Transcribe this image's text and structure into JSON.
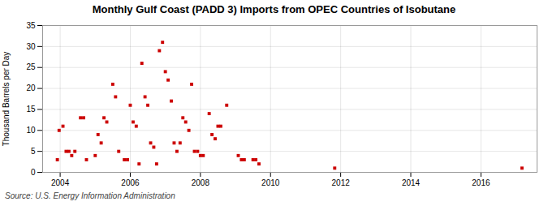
{
  "chart_data": {
    "type": "scatter",
    "title": "Monthly Gulf Coast (PADD 3) Imports from OPEC Countries of Isobutane",
    "ylabel": "Thousand Barrels per Day",
    "source": "Source: U.S. Energy Information Administration",
    "color": "#cc0000",
    "marker": "square",
    "grid": true,
    "xlim": [
      2003.5,
      2017.6
    ],
    "xticks": [
      2004,
      2006,
      2008,
      2010,
      2012,
      2014,
      2016
    ],
    "ylim": [
      0,
      35
    ],
    "yticks": [
      0,
      5,
      10,
      15,
      20,
      25,
      30,
      35
    ],
    "x": [
      2003.92,
      2003.97,
      2004.08,
      2004.17,
      2004.25,
      2004.33,
      2004.42,
      2004.58,
      2004.67,
      2004.75,
      2005.0,
      2005.08,
      2005.17,
      2005.25,
      2005.33,
      2005.5,
      2005.58,
      2005.67,
      2005.83,
      2005.92,
      2006.0,
      2006.08,
      2006.17,
      2006.25,
      2006.33,
      2006.42,
      2006.5,
      2006.58,
      2006.67,
      2006.75,
      2006.83,
      2006.92,
      2007.0,
      2007.08,
      2007.17,
      2007.25,
      2007.33,
      2007.42,
      2007.5,
      2007.58,
      2007.67,
      2007.75,
      2007.83,
      2007.92,
      2008.0,
      2008.08,
      2008.25,
      2008.33,
      2008.42,
      2008.5,
      2008.58,
      2008.75,
      2009.08,
      2009.17,
      2009.25,
      2009.5,
      2009.58,
      2009.67,
      2011.83,
      2017.17
    ],
    "values": [
      3,
      10,
      11,
      5,
      5,
      4,
      5,
      13,
      13,
      3,
      4,
      9,
      7,
      13,
      12,
      21,
      18,
      5,
      3,
      3,
      16,
      12,
      11,
      2,
      26,
      18,
      16,
      7,
      6,
      2,
      29,
      31,
      24,
      22,
      17,
      7,
      5,
      7,
      13,
      12,
      10,
      21,
      5,
      5,
      4,
      4,
      14,
      9,
      8,
      11,
      11,
      16,
      4,
      3,
      3,
      3,
      3,
      2,
      1,
      1
    ]
  }
}
